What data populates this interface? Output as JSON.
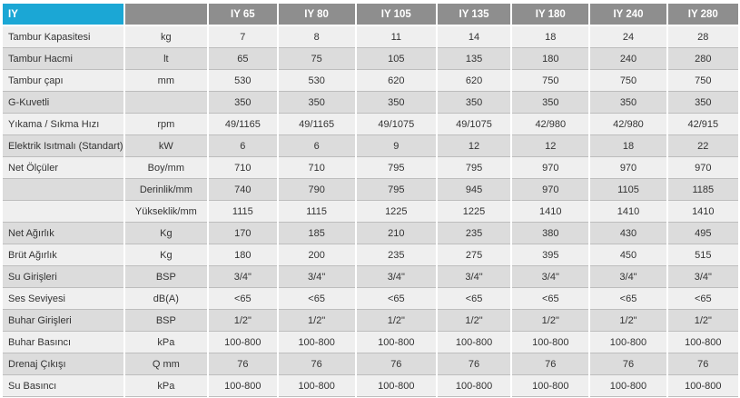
{
  "header": {
    "title": "IY",
    "unit_header": "",
    "models": [
      "IY 65",
      "IY 80",
      "IY 105",
      "IY 135",
      "IY 180",
      "IY 240",
      "IY 280"
    ]
  },
  "colors": {
    "header_accent": "#1ba7d5",
    "header_bg": "#8e8e8e",
    "row_light": "#efefef",
    "row_dark": "#dcdcdc"
  },
  "rows": [
    {
      "label": "Tambur Kapasitesi",
      "unit": "kg",
      "values": [
        "7",
        "8",
        "11",
        "14",
        "18",
        "24",
        "28"
      ]
    },
    {
      "label": "Tambur Hacmi",
      "unit": "lt",
      "values": [
        "65",
        "75",
        "105",
        "135",
        "180",
        "240",
        "280"
      ]
    },
    {
      "label": "Tambur çapı",
      "unit": "mm",
      "values": [
        "530",
        "530",
        "620",
        "620",
        "750",
        "750",
        "750"
      ]
    },
    {
      "label": "G-Kuvetli",
      "unit": "",
      "values": [
        "350",
        "350",
        "350",
        "350",
        "350",
        "350",
        "350"
      ]
    },
    {
      "label": "Yıkama / Sıkma Hızı",
      "unit": "rpm",
      "values": [
        "49/1165",
        "49/1165",
        "49/1075",
        "49/1075",
        "42/980",
        "42/980",
        "42/915"
      ]
    },
    {
      "label": "Elektrik Isıtmalı (Standart)",
      "unit": "kW",
      "values": [
        "6",
        "6",
        "9",
        "12",
        "12",
        "18",
        "22"
      ]
    },
    {
      "label": "Net Ölçüler",
      "unit": "Boy/mm",
      "values": [
        "710",
        "710",
        "795",
        "795",
        "970",
        "970",
        "970"
      ]
    },
    {
      "label": "",
      "unit": "Derinlik/mm",
      "values": [
        "740",
        "790",
        "795",
        "945",
        "970",
        "1105",
        "1185"
      ]
    },
    {
      "label": "",
      "unit": "Yükseklik/mm",
      "values": [
        "1115",
        "1115",
        "1225",
        "1225",
        "1410",
        "1410",
        "1410"
      ]
    },
    {
      "label": "Net Ağırlık",
      "unit": "Kg",
      "values": [
        "170",
        "185",
        "210",
        "235",
        "380",
        "430",
        "495"
      ]
    },
    {
      "label": "Brüt Ağırlık",
      "unit": "Kg",
      "values": [
        "180",
        "200",
        "235",
        "275",
        "395",
        "450",
        "515"
      ]
    },
    {
      "label": "Su Girişleri",
      "unit": "BSP",
      "values": [
        "3/4\"",
        "3/4\"",
        "3/4\"",
        "3/4\"",
        "3/4\"",
        "3/4\"",
        "3/4\""
      ]
    },
    {
      "label": "Ses Seviyesi",
      "unit": "dB(A)",
      "values": [
        "<65",
        "<65",
        "<65",
        "<65",
        "<65",
        "<65",
        "<65"
      ]
    },
    {
      "label": "Buhar Girişleri",
      "unit": "BSP",
      "values": [
        "1/2\"",
        "1/2\"",
        "1/2\"",
        "1/2\"",
        "1/2\"",
        "1/2\"",
        "1/2\""
      ]
    },
    {
      "label": "Buhar Basıncı",
      "unit": "kPa",
      "values": [
        "100-800",
        "100-800",
        "100-800",
        "100-800",
        "100-800",
        "100-800",
        "100-800"
      ]
    },
    {
      "label": "Drenaj Çıkışı",
      "unit": "Q mm",
      "values": [
        "76",
        "76",
        "76",
        "76",
        "76",
        "76",
        "76"
      ]
    },
    {
      "label": "Su Basıncı",
      "unit": "kPa",
      "values": [
        "100-800",
        "100-800",
        "100-800",
        "100-800",
        "100-800",
        "100-800",
        "100-800"
      ]
    }
  ]
}
